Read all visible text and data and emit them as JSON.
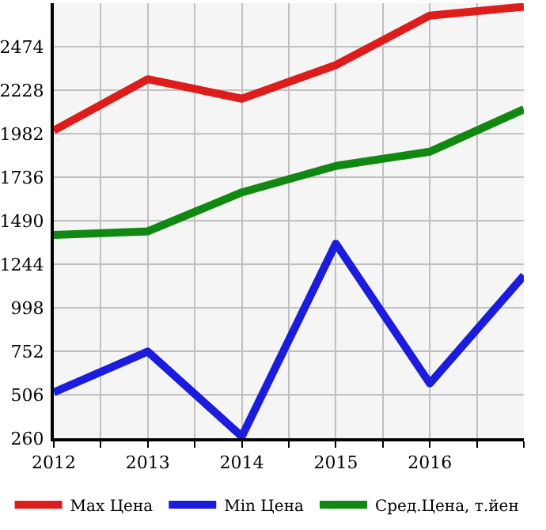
{
  "chart_data": {
    "type": "line",
    "x": [
      2012,
      2013,
      2014,
      2015,
      2016,
      2017
    ],
    "series": [
      {
        "name": "Max Цена",
        "color": "#dd1c1c",
        "values": [
          2000,
          2290,
          2180,
          2370,
          2650,
          2700
        ]
      },
      {
        "name": "Min Цена",
        "color": "#1c1cdd",
        "values": [
          520,
          750,
          270,
          1360,
          570,
          1180
        ]
      },
      {
        "name": "Сред.Цена, т.йен",
        "color": "#118811",
        "values": [
          1410,
          1430,
          1650,
          1800,
          1880,
          2120
        ]
      }
    ],
    "xlim": [
      2012,
      2017
    ],
    "xticks": [
      2012,
      {
        "value": 2012.5,
        "label": null
      },
      2013,
      {
        "value": 2013.5,
        "label": null
      },
      2014,
      {
        "value": 2014.5,
        "label": null
      },
      2015,
      {
        "value": 2015.5,
        "label": null
      },
      2016,
      {
        "value": 2016.5,
        "label": null
      },
      {
        "value": 2017,
        "label": null
      }
    ],
    "ylim": [
      260,
      2720
    ],
    "yticks": [
      260,
      506,
      752,
      998,
      1244,
      1490,
      1736,
      1982,
      2228,
      2474,
      {
        "value": 2720,
        "label": null
      }
    ],
    "grid": true,
    "legend": "bottom",
    "marker": "none",
    "line_style": "solid"
  }
}
